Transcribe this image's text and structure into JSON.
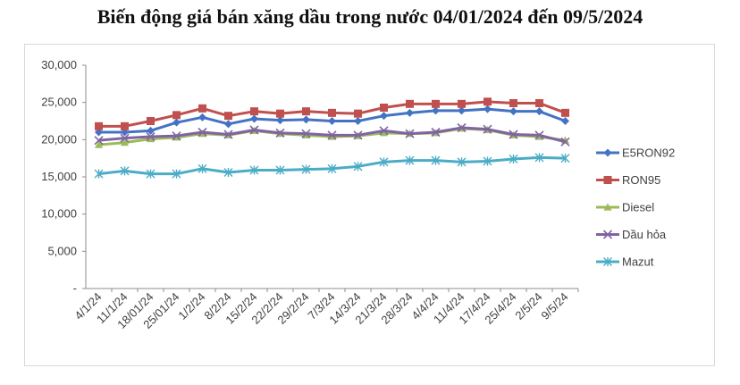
{
  "chart_data": {
    "type": "line",
    "title": "Biến động giá bán xăng dầu trong nước 04/01/2024 đến 09/5/2024",
    "xlabel": "",
    "ylabel": "",
    "ylim": [
      0,
      30000
    ],
    "y_ticks": [
      "-",
      "5,000",
      "10,000",
      "15,000",
      "20,000",
      "25,000",
      "30,000"
    ],
    "grid": false,
    "legend": "right",
    "categories": [
      "4/1/24",
      "11/1/24",
      "18/01/24",
      "25/01/24",
      "1/2/24",
      "8/2/24",
      "15/2/24",
      "22/2/24",
      "29/2/24",
      "7/3/24",
      "14/3/24",
      "21/3/24",
      "28/3/24",
      "4/4/24",
      "11/4/24",
      "17/4/24",
      "25/4/24",
      "2/5/24",
      "9/5/24"
    ],
    "series": [
      {
        "name": "E5RON92",
        "color": "#4472C4",
        "marker": "diamond",
        "values": [
          21000,
          21000,
          21200,
          22300,
          23000,
          22100,
          22800,
          22600,
          22700,
          22500,
          22500,
          23200,
          23600,
          23900,
          23900,
          24100,
          23800,
          23800,
          22500
        ]
      },
      {
        "name": "RON95",
        "color": "#C0504D",
        "marker": "square",
        "values": [
          21800,
          21800,
          22500,
          23300,
          24200,
          23200,
          23800,
          23500,
          23800,
          23600,
          23500,
          24300,
          24800,
          24800,
          24800,
          25100,
          24900,
          24900,
          23600
        ]
      },
      {
        "name": "Diesel",
        "color": "#9BBB59",
        "marker": "triangle",
        "values": [
          19300,
          19600,
          20100,
          20300,
          20800,
          20600,
          21200,
          20800,
          20600,
          20400,
          20500,
          20900,
          20800,
          20900,
          21500,
          21300,
          20600,
          20400,
          19900
        ]
      },
      {
        "name": "Dầu hỏa",
        "color": "#8064A2",
        "marker": "x",
        "values": [
          19900,
          20200,
          20400,
          20500,
          21000,
          20700,
          21300,
          20900,
          20800,
          20600,
          20600,
          21200,
          20800,
          21000,
          21600,
          21400,
          20700,
          20600,
          19700
        ]
      },
      {
        "name": "Mazut",
        "color": "#4BACC6",
        "marker": "star",
        "values": [
          15400,
          15800,
          15400,
          15400,
          16100,
          15600,
          15900,
          15900,
          16000,
          16100,
          16400,
          17000,
          17200,
          17200,
          17000,
          17100,
          17400,
          17600,
          17500
        ]
      }
    ]
  }
}
